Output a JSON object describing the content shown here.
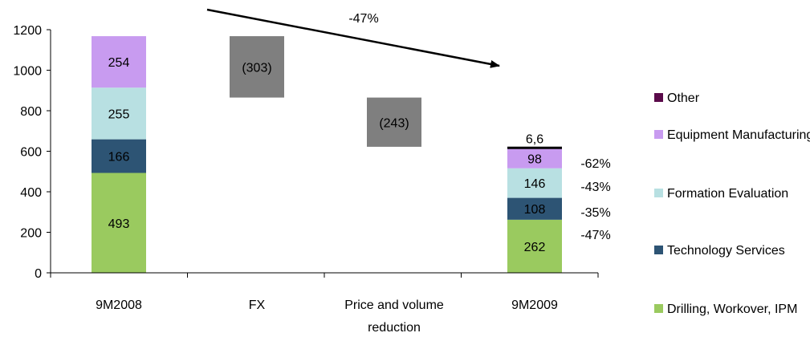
{
  "chart_data": {
    "type": "bar",
    "subtype": "stacked-waterfall",
    "title": "",
    "xlabel": "",
    "ylabel": "",
    "ylim": [
      0,
      1200
    ],
    "yticks": [
      "0",
      "200",
      "400",
      "600",
      "800",
      "1000",
      "1200"
    ],
    "grid": false,
    "legend_position": "right",
    "categories": [
      "9M2008",
      "FX",
      "Price and volume reduction",
      "9M2009"
    ],
    "series": [
      {
        "name": "Drilling, Workover, IPM",
        "color": "#9ACA5F",
        "values": [
          493,
          null,
          null,
          262
        ],
        "labels": [
          "493",
          "",
          "",
          "262"
        ]
      },
      {
        "name": "Technology Services",
        "color": "#2D5474",
        "values": [
          166,
          null,
          null,
          108
        ],
        "labels": [
          "166",
          "",
          "",
          "108"
        ]
      },
      {
        "name": "Formation Evaluation",
        "color": "#B8E0E2",
        "values": [
          255,
          null,
          null,
          146
        ],
        "labels": [
          "255",
          "",
          "",
          "146"
        ]
      },
      {
        "name": "Equipment Manufacturing",
        "color": "#C89BF0",
        "values": [
          254,
          null,
          null,
          98
        ],
        "labels": [
          "254",
          "",
          "",
          "98"
        ]
      },
      {
        "name": "Other",
        "color": "#5A0A4A",
        "values": [
          null,
          null,
          null,
          6.6
        ],
        "labels": [
          "",
          "",
          "",
          "6,6"
        ]
      }
    ],
    "waterfall_steps": [
      {
        "category": "FX",
        "from": 1168,
        "to": 865,
        "label": "(303)",
        "color": "#7F7F7F"
      },
      {
        "category": "Price and volume reduction",
        "from": 865,
        "to": 622,
        "label": "(243)",
        "color": "#7F7F7F"
      }
    ],
    "change_labels": [
      "-62%",
      "-43%",
      "-35%",
      "-47%"
    ],
    "trend_annotation": "-47%"
  }
}
